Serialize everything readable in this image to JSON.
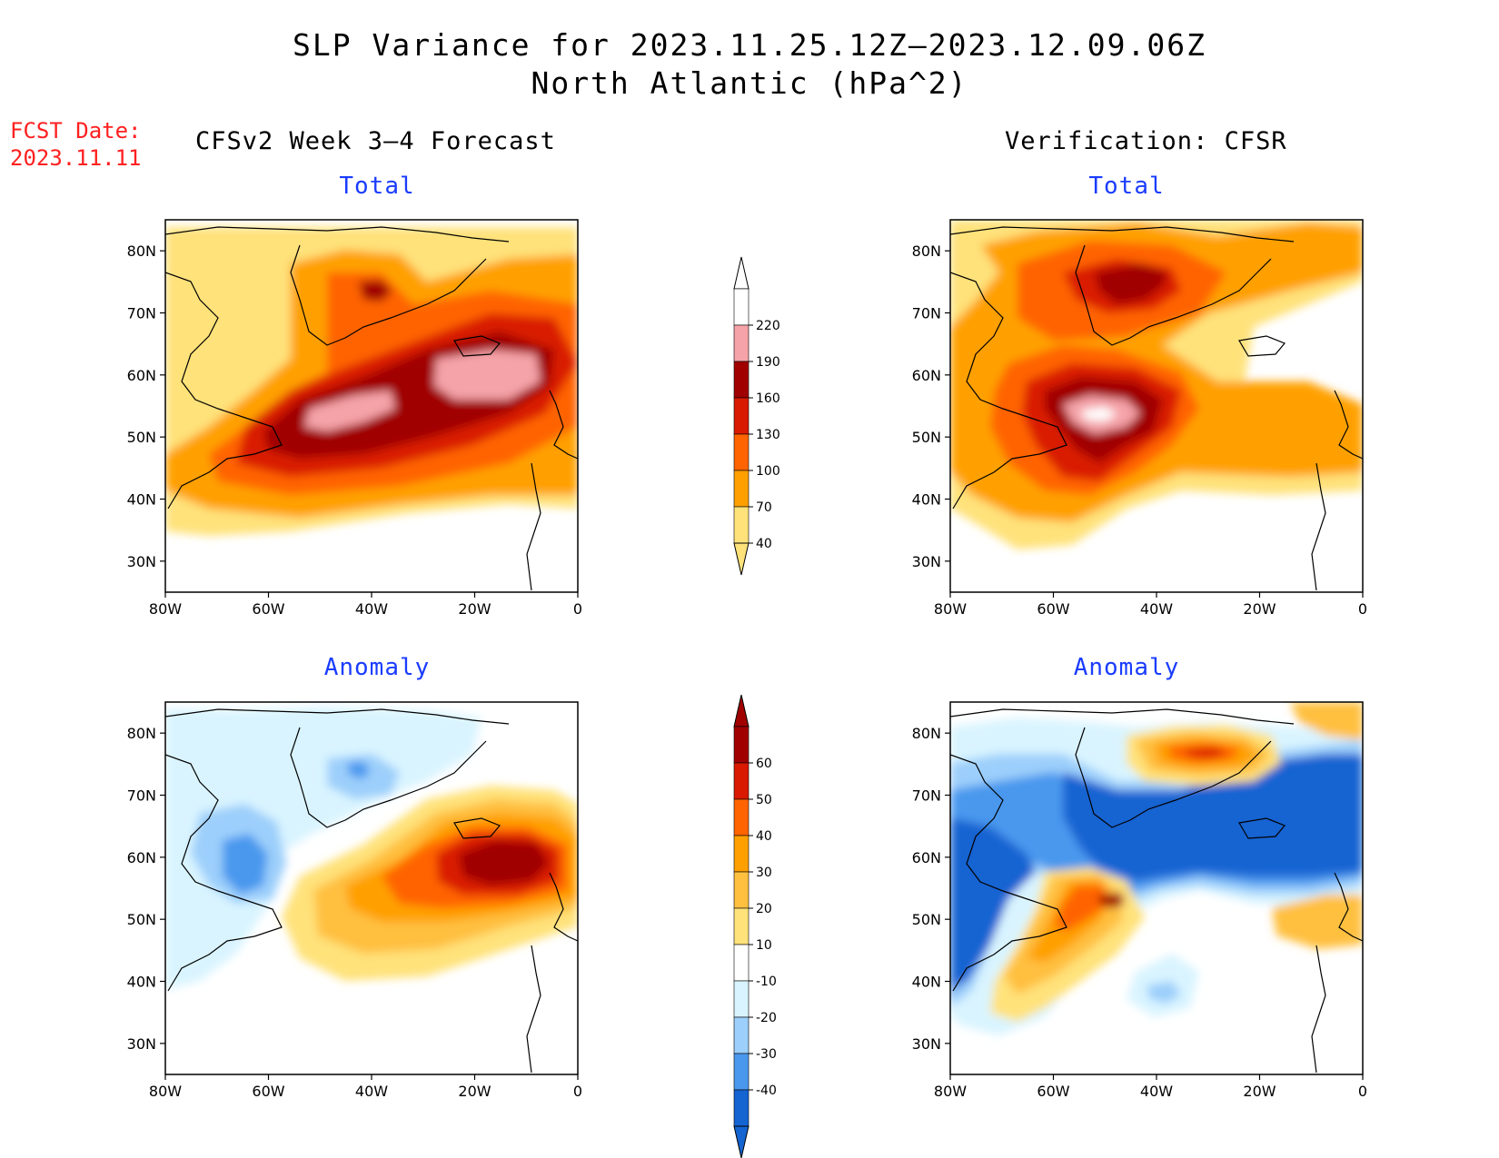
{
  "title": {
    "line1": "SLP Variance for 2023.11.25.12Z–2023.12.09.06Z",
    "line2": "North Atlantic (hPa^2)"
  },
  "fcst_date": {
    "label": "FCST Date:",
    "value": "2023.11.11"
  },
  "columns": {
    "left": "CFSv2 Week 3–4 Forecast",
    "right": "Verification: CFSR"
  },
  "panel_titles": {
    "total": "Total",
    "anomaly": "Anomaly"
  },
  "axes": {
    "lat_labels": [
      "80N",
      "70N",
      "60N",
      "50N",
      "40N",
      "30N"
    ],
    "lat_values": [
      80,
      70,
      60,
      50,
      40,
      30
    ],
    "lon_labels": [
      "80W",
      "60W",
      "40W",
      "20W",
      "0"
    ],
    "lon_values": [
      -80,
      -60,
      -40,
      -20,
      0
    ],
    "lon_range": [
      -80,
      0
    ],
    "lat_range": [
      25,
      85
    ]
  },
  "colorbars": {
    "total": {
      "levels": [
        "220",
        "190",
        "160",
        "130",
        "100",
        "70",
        "40"
      ],
      "colors": [
        "#ffffff",
        "#f5a3a8",
        "#a00000",
        "#d91a00",
        "#ff6400",
        "#ffa000",
        "#ffe27a"
      ]
    },
    "anomaly": {
      "levels": [
        "60",
        "50",
        "40",
        "30",
        "20",
        "10",
        "-10",
        "-20",
        "-30",
        "-40"
      ],
      "colors": [
        "#a00000",
        "#d91a00",
        "#ff6400",
        "#ffa000",
        "#ffc040",
        "#ffe27a",
        "#ffffff",
        "#d9f4ff",
        "#9ccffb",
        "#4a98ee",
        "#1464d2"
      ]
    }
  },
  "chart_data": [
    {
      "type": "heatmap",
      "panel": "CFSv2 Week 3–4 Forecast — Total",
      "units": "hPa^2",
      "levels": [
        40,
        70,
        100,
        130,
        160,
        190,
        220
      ],
      "features": [
        {
          "lon": -30,
          "lat": 55,
          "max_level": 190
        },
        {
          "lon": -18,
          "lat": 62,
          "max_level": 190
        },
        {
          "lon": -40,
          "lat": 52,
          "max_level": 190
        },
        {
          "lon": -38,
          "lat": 74,
          "max_level": 160
        }
      ]
    },
    {
      "type": "heatmap",
      "panel": "Verification: CFSR — Total",
      "units": "hPa^2",
      "levels": [
        40,
        70,
        100,
        130,
        160,
        190,
        220
      ],
      "features": [
        {
          "lon": -50,
          "lat": 52,
          "max_level": 190
        },
        {
          "lon": -42,
          "lat": 76,
          "max_level": 160
        },
        {
          "lon": -50,
          "lat": 46,
          "max_level": 160
        }
      ]
    },
    {
      "type": "heatmap",
      "panel": "CFSv2 Week 3–4 Forecast — Anomaly",
      "units": "hPa^2",
      "levels": [
        -40,
        -30,
        -20,
        -10,
        10,
        20,
        30,
        40,
        50,
        60
      ],
      "features": [
        {
          "lon": -15,
          "lat": 60,
          "max_level": 60
        },
        {
          "lon": -40,
          "lat": 55,
          "max_level": 30
        },
        {
          "lon": -65,
          "lat": 59,
          "min_level": -30
        },
        {
          "lon": -40,
          "lat": 78,
          "min_level": -30
        }
      ]
    },
    {
      "type": "heatmap",
      "panel": "Verification: CFSR — Anomaly",
      "units": "hPa^2",
      "levels": [
        -40,
        -30,
        -20,
        -10,
        10,
        20,
        30,
        40,
        50,
        60
      ],
      "features": [
        {
          "lon": -70,
          "lat": 52,
          "min_level": -40
        },
        {
          "lon": -25,
          "lat": 65,
          "min_level": -40
        },
        {
          "lon": -32,
          "lat": 78,
          "max_level": 50
        },
        {
          "lon": -46,
          "lat": 52,
          "max_level": 60
        },
        {
          "lon": -50,
          "lat": 40,
          "max_level": 40
        },
        {
          "lon": -45,
          "lat": 36,
          "min_level": -30
        }
      ]
    }
  ]
}
